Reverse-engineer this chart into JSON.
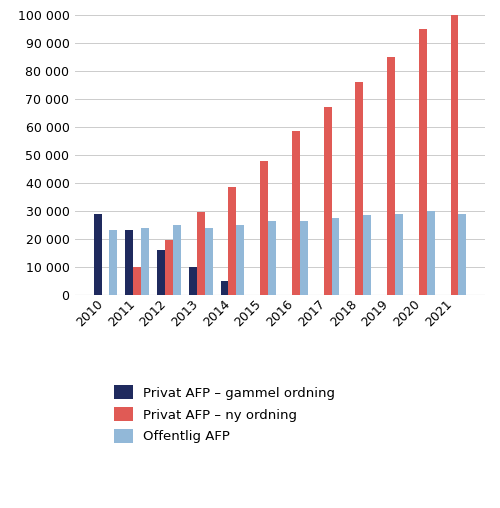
{
  "years": [
    2010,
    2011,
    2012,
    2013,
    2014,
    2015,
    2016,
    2017,
    2018,
    2019,
    2020,
    2021
  ],
  "privat_gammel": [
    29000,
    23000,
    16000,
    10000,
    5000,
    0,
    0,
    0,
    0,
    0,
    0,
    0
  ],
  "privat_ny": [
    0,
    10000,
    19500,
    29500,
    38500,
    48000,
    58500,
    67000,
    76000,
    85000,
    95000,
    101000
  ],
  "offentlig": [
    23000,
    24000,
    25000,
    24000,
    25000,
    26500,
    26500,
    27500,
    28500,
    29000,
    30000,
    29000
  ],
  "color_gammel": "#1f2a5e",
  "color_ny": "#e05a55",
  "color_offentlig": "#92b8d8",
  "ylim": [
    0,
    100000
  ],
  "yticks": [
    0,
    10000,
    20000,
    30000,
    40000,
    50000,
    60000,
    70000,
    80000,
    90000,
    100000
  ],
  "legend_labels": [
    "Privat AFP – gammel ordning",
    "Privat AFP – ny ordning",
    "Offentlig AFP"
  ],
  "bar_width": 0.25,
  "figwidth": 5.0,
  "figheight": 5.08,
  "dpi": 100
}
